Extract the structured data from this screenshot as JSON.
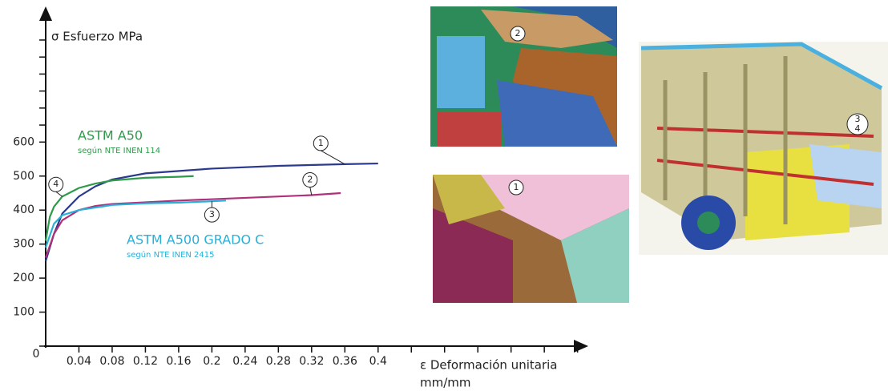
{
  "chart_data": {
    "type": "line",
    "y_label": "σ Esfuerzo MPa",
    "x_label": [
      "ε Deformación unitaria",
      "mm/mm"
    ],
    "xlim": [
      0,
      0.65
    ],
    "ylim": [
      0,
      980
    ],
    "xticks": [
      0.04,
      0.08,
      0.12,
      0.16,
      0.2,
      0.24,
      0.28,
      0.32,
      0.36,
      0.4
    ],
    "x_minor_ticks": [
      0.44,
      0.48,
      0.52,
      0.56,
      0.6,
      0.64
    ],
    "yticks": [
      0,
      100,
      200,
      300,
      400,
      500,
      600
    ],
    "y_minor_ticks": [
      650,
      700,
      750,
      800,
      850,
      900
    ],
    "series": [
      {
        "name": "1",
        "color": "#2b3a8c",
        "x": [
          0,
          0.01,
          0.02,
          0.04,
          0.06,
          0.08,
          0.12,
          0.2,
          0.28,
          0.36,
          0.4
        ],
        "values": [
          250,
          330,
          390,
          440,
          470,
          490,
          508,
          522,
          530,
          535,
          537
        ]
      },
      {
        "name": "2",
        "color": "#b0307a",
        "x": [
          0,
          0.01,
          0.02,
          0.04,
          0.06,
          0.08,
          0.16,
          0.24,
          0.32,
          0.355
        ],
        "values": [
          260,
          330,
          370,
          400,
          412,
          418,
          428,
          436,
          444,
          450
        ]
      },
      {
        "name": "3",
        "color": "#27b0d8",
        "x": [
          0,
          0.01,
          0.02,
          0.04,
          0.08,
          0.12,
          0.16,
          0.2,
          0.217
        ],
        "values": [
          290,
          360,
          385,
          400,
          415,
          420,
          422,
          426,
          428
        ]
      },
      {
        "name": "4",
        "color": "#2e9a4a",
        "x": [
          0,
          0.005,
          0.01,
          0.02,
          0.04,
          0.06,
          0.08,
          0.12,
          0.16,
          0.178
        ],
        "values": [
          310,
          380,
          410,
          440,
          465,
          478,
          487,
          495,
          498,
          500
        ]
      }
    ],
    "annotations": [
      {
        "title": "ASTM A50",
        "subtitle": "según NTE INEN 114",
        "color": "#2e9a4a"
      },
      {
        "title": "ASTM A500 GRADO C",
        "subtitle": "según NTE INEN 2415",
        "color": "#27b0d8"
      }
    ]
  },
  "image_callouts": [
    "2",
    "1",
    "3",
    "4"
  ]
}
